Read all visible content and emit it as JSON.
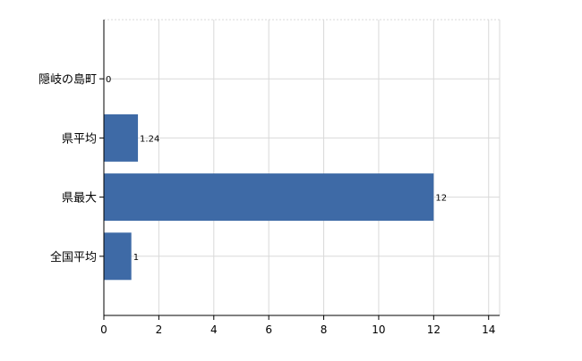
{
  "chart_data": {
    "type": "bar",
    "orientation": "horizontal",
    "categories": [
      "隠岐の島町",
      "県平均",
      "県最大",
      "全国平均"
    ],
    "values": [
      0,
      1.24,
      12,
      1
    ],
    "value_labels": [
      "0",
      "1.24",
      "12",
      "1"
    ],
    "title": "",
    "xlabel": "",
    "ylabel": "",
    "xlim": [
      0,
      14.4
    ],
    "x_ticks": [
      0,
      2,
      4,
      6,
      8,
      10,
      12,
      14
    ],
    "x_tick_labels": [
      "0",
      "2",
      "4",
      "6",
      "8",
      "10",
      "12",
      "14"
    ],
    "grid": true,
    "legend": "none",
    "colors": {
      "bar": "#3e6aa6",
      "grid": "#d9d9d9",
      "axis": "#000000",
      "text": "#000000"
    }
  }
}
